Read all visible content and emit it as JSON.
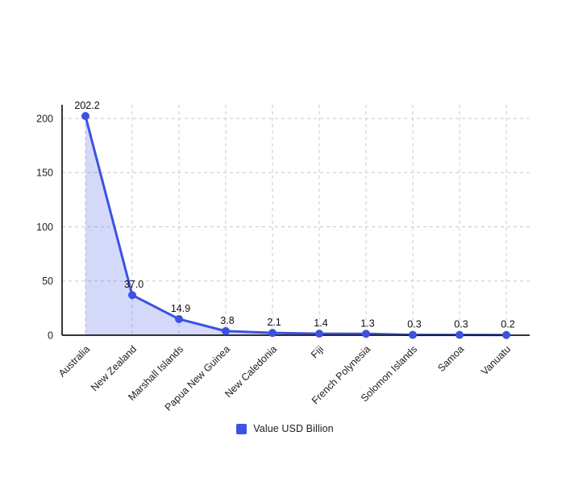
{
  "chart_data": {
    "type": "area",
    "title": "",
    "categories": [
      "Australia",
      "New Zealand",
      "Marshall Islands",
      "Papua New Guinea",
      "New Caledonia",
      "Fiji",
      "French Polynesia",
      "Solomon Islands",
      "Samoa",
      "Vanuatu"
    ],
    "series": [
      {
        "name": "Value USD Billion",
        "values": [
          202.2,
          37.0,
          14.9,
          3.8,
          2.1,
          1.4,
          1.3,
          0.3,
          0.3,
          0.2
        ]
      }
    ],
    "point_labels": [
      "202.2",
      "37.0",
      "14.9",
      "3.8",
      "2.1",
      "1.4",
      "1.3",
      "0.3",
      "0.3",
      "0.2"
    ],
    "xlabel": "",
    "ylabel": "",
    "y_ticks": [
      0,
      50,
      100,
      150,
      200
    ],
    "ylim": [
      0,
      212.6
    ],
    "grid": "dashed horizontal and vertical gridlines",
    "legend_position": "bottom-center",
    "colors": {
      "line": "#3c52e2",
      "marker": "#3c52e2",
      "area_fill": "rgba(61, 83, 227, 0.22)",
      "gridline": "#c9c9c9",
      "axis": "#161616",
      "tick_text": "#1c1c1c",
      "data_label_text": "#111111",
      "background": "#ffffff"
    }
  }
}
